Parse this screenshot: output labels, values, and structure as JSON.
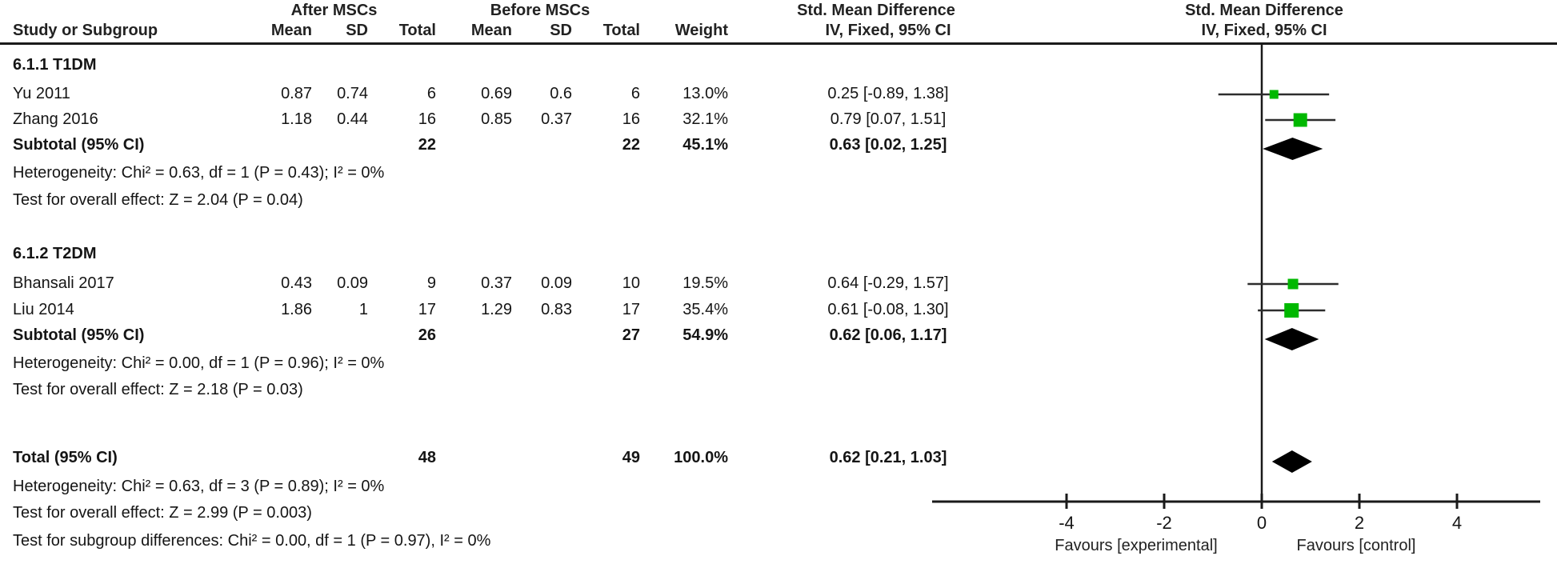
{
  "header": {
    "group_after": "After MSCs",
    "group_before": "Before MSCs",
    "smd_text_col": "Std. Mean Difference",
    "smd_plot_col": "Std. Mean Difference",
    "study": "Study or Subgroup",
    "mean1": "Mean",
    "sd1": "SD",
    "total1": "Total",
    "mean2": "Mean",
    "sd2": "SD",
    "total2": "Total",
    "weight": "Weight",
    "ci_text_col": "IV, Fixed, 95% CI",
    "ci_plot_col": "IV, Fixed, 95% CI"
  },
  "chart_data": {
    "type": "forest",
    "effect_measure": "Std. Mean Difference (IV, Fixed, 95% CI)",
    "subgroups": [
      {
        "label": "6.1.1 T1DM",
        "studies": [
          {
            "study": "Yu  2011",
            "mean1": "0.87",
            "sd1": "0.74",
            "total1": "6",
            "mean2": "0.69",
            "sd2": "0.6",
            "total2": "6",
            "weight": "13.0%",
            "weight_pct": 13.0,
            "smd": 0.25,
            "lo": -0.89,
            "hi": 1.38,
            "ci_label": "0.25 [-0.89, 1.38]"
          },
          {
            "study": "Zhang 2016",
            "mean1": "1.18",
            "sd1": "0.44",
            "total1": "16",
            "mean2": "0.85",
            "sd2": "0.37",
            "total2": "16",
            "weight": "32.1%",
            "weight_pct": 32.1,
            "smd": 0.79,
            "lo": 0.07,
            "hi": 1.51,
            "ci_label": "0.79 [0.07, 1.51]"
          }
        ],
        "subtotal": {
          "label": "Subtotal (95% CI)",
          "total1": "22",
          "total2": "22",
          "weight": "45.1%",
          "smd": 0.63,
          "lo": 0.02,
          "hi": 1.25,
          "ci_label": "0.63 [0.02, 1.25]"
        },
        "heterogeneity": "Heterogeneity: Chi² = 0.63, df = 1 (P = 0.43); I² = 0%",
        "overall_effect": "Test for overall effect: Z = 2.04 (P = 0.04)"
      },
      {
        "label": "6.1.2 T2DM",
        "studies": [
          {
            "study": "Bhansali 2017",
            "mean1": "0.43",
            "sd1": "0.09",
            "total1": "9",
            "mean2": "0.37",
            "sd2": "0.09",
            "total2": "10",
            "weight": "19.5%",
            "weight_pct": 19.5,
            "smd": 0.64,
            "lo": -0.29,
            "hi": 1.57,
            "ci_label": "0.64 [-0.29, 1.57]"
          },
          {
            "study": "Liu 2014",
            "mean1": "1.86",
            "sd1": "1",
            "total1": "17",
            "mean2": "1.29",
            "sd2": "0.83",
            "total2": "17",
            "weight": "35.4%",
            "weight_pct": 35.4,
            "smd": 0.61,
            "lo": -0.08,
            "hi": 1.3,
            "ci_label": "0.61 [-0.08, 1.30]"
          }
        ],
        "subtotal": {
          "label": "Subtotal (95% CI)",
          "total1": "26",
          "total2": "27",
          "weight": "54.9%",
          "smd": 0.62,
          "lo": 0.06,
          "hi": 1.17,
          "ci_label": "0.62 [0.06, 1.17]"
        },
        "heterogeneity": "Heterogeneity: Chi² = 0.00, df = 1 (P = 0.96); I² = 0%",
        "overall_effect": "Test for overall effect: Z = 2.18 (P = 0.03)"
      }
    ],
    "total": {
      "label": "Total (95% CI)",
      "total1": "48",
      "total2": "49",
      "weight": "100.0%",
      "smd": 0.62,
      "lo": 0.21,
      "hi": 1.03,
      "ci_label": "0.62 [0.21, 1.03]"
    },
    "footer_notes": [
      "Heterogeneity: Chi² = 0.63, df = 3 (P = 0.89); I² = 0%",
      "Test for overall effect: Z = 2.99 (P = 0.003)",
      "Test for subgroup differences: Chi² = 0.00, df = 1 (P = 0.97), I² = 0%"
    ],
    "axis": {
      "ticks": [
        -4,
        -2,
        0,
        2,
        4
      ],
      "xlim_ticks": [
        -4,
        4
      ],
      "favours_left": "Favours [experimental]",
      "favours_right": "Favours [control]"
    },
    "colors": {
      "square": "#00B800",
      "diamond": "#000000",
      "ci_line": "#2d2d2d",
      "axis": "#1a1a1a"
    }
  }
}
